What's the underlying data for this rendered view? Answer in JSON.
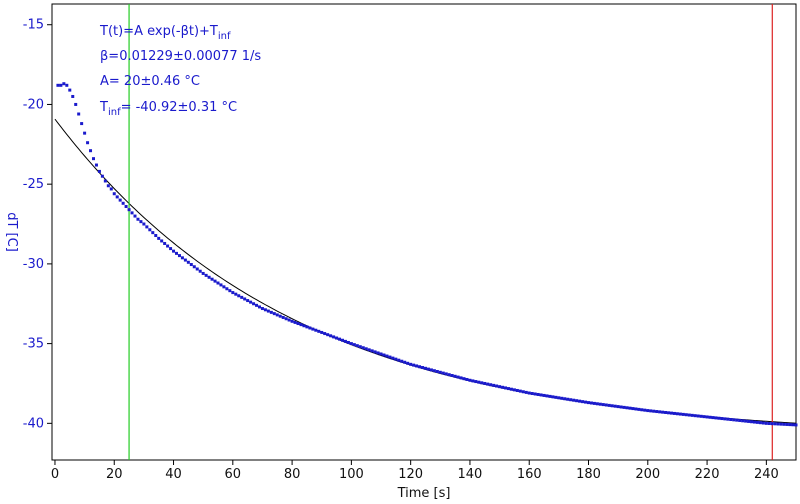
{
  "chart_data": {
    "type": "scatter",
    "xlabel": "Time [s]",
    "ylabel": "dT [C]",
    "xlim": [
      -1,
      250
    ],
    "ylim": [
      -42.3,
      -13.7
    ],
    "xticks": [
      0,
      20,
      40,
      60,
      80,
      100,
      120,
      140,
      160,
      180,
      200,
      220,
      240
    ],
    "yticks": [
      -15,
      -20,
      -25,
      -30,
      -35,
      -40
    ],
    "grid": false,
    "annotations": [
      {
        "text": "T(t)=A exp(-βt)+T",
        "sub": "inf",
        "rest": ""
      },
      {
        "text": "β=0.01229±0.00077 1/s",
        "sub": "",
        "rest": ""
      },
      {
        "text": "A= 20±0.46 °C",
        "sub": "",
        "rest": ""
      },
      {
        "text": "T",
        "sub": "inf",
        "rest": "= -40.92±0.31 °C"
      }
    ],
    "fit": {
      "A": 20,
      "beta": 0.01229,
      "T_inf": -40.92,
      "x_range": [
        0,
        250
      ],
      "color": "#000000"
    },
    "vlines": [
      {
        "x": 25,
        "color": "#22cc22"
      },
      {
        "x": 242,
        "color": "#dd2222"
      }
    ],
    "series": [
      {
        "color": "#1a1acc",
        "x": [
          1,
          2,
          3,
          4,
          5,
          6,
          7,
          8,
          9,
          10,
          11,
          12,
          13,
          14,
          15,
          16,
          17,
          18,
          19,
          20,
          22,
          24,
          26,
          28,
          30,
          35,
          40,
          50,
          60,
          70,
          80,
          100,
          120,
          140,
          160,
          180,
          200,
          220,
          240,
          250
        ],
        "y": [
          -18.8,
          -18.8,
          -18.7,
          -18.8,
          -19.1,
          -19.5,
          -20.0,
          -20.6,
          -21.2,
          -21.8,
          -22.4,
          -22.9,
          -23.4,
          -23.8,
          -24.2,
          -24.5,
          -24.8,
          -25.1,
          -25.3,
          -25.6,
          -26.0,
          -26.4,
          -26.8,
          -27.2,
          -27.5,
          -28.4,
          -29.2,
          -30.6,
          -31.8,
          -32.8,
          -33.6,
          -35.0,
          -36.3,
          -37.3,
          -38.1,
          -38.7,
          -39.2,
          -39.6,
          -40.0,
          -40.1
        ]
      }
    ]
  }
}
